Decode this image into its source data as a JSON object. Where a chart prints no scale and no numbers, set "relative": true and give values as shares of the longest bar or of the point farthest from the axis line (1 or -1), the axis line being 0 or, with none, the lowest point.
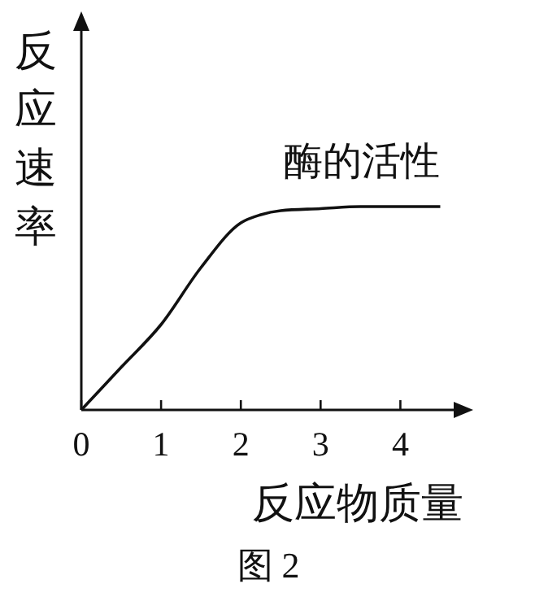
{
  "chart_data": {
    "type": "line",
    "relative": true,
    "xlabel": "反应物质量",
    "ylabel": "反应速率",
    "x": [
      0,
      0.5,
      1,
      1.5,
      2,
      2.25,
      2.5,
      3,
      3.5,
      4,
      4.5
    ],
    "series": [
      {
        "name": "酶的活性",
        "color": "#111111",
        "values": [
          0,
          0.21,
          0.42,
          0.7,
          0.92,
          0.96,
          0.98,
          0.99,
          1,
          1,
          1
        ]
      }
    ],
    "xlim": [
      0,
      4.75
    ],
    "xticks": [
      0,
      1,
      2,
      3,
      4
    ],
    "marker": "none",
    "line_style": "solid",
    "annotations": [
      "图 2"
    ]
  }
}
